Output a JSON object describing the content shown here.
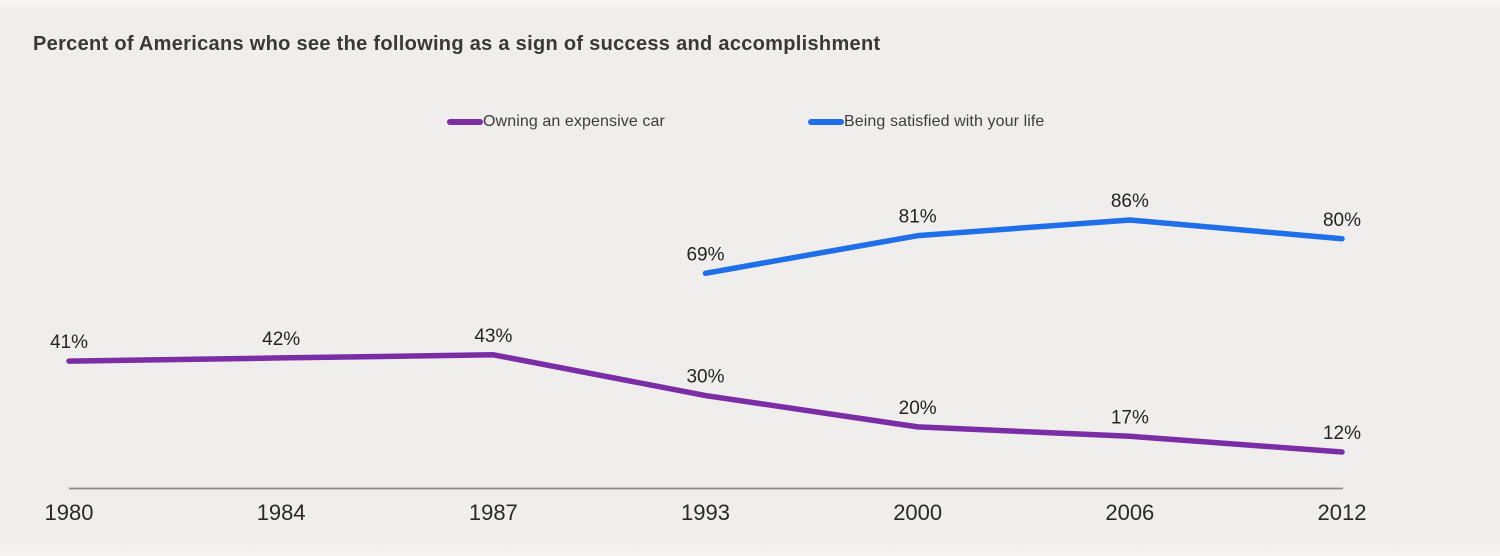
{
  "title": "Percent of Americans who see the following as a sign of success and accomplishment",
  "chart_data": {
    "type": "line",
    "title": "Percent of Americans who see the following as a sign of success and accomplishment",
    "categories": [
      "1980",
      "1984",
      "1987",
      "1993",
      "2000",
      "2006",
      "2012"
    ],
    "series": [
      {
        "name": "Owning an expensive car",
        "color": "#7b2da6",
        "values": [
          41,
          42,
          43,
          30,
          20,
          17,
          12
        ]
      },
      {
        "name": "Being satisfied with your life",
        "color": "#1e6fe8",
        "values": [
          null,
          null,
          null,
          69,
          81,
          86,
          80
        ]
      }
    ],
    "value_suffix": "%",
    "value_labels": "above-points",
    "xlabel": "",
    "ylabel": "",
    "ylim": [
      0,
      100
    ],
    "grid": false,
    "legend_position": "top-center",
    "colors": {
      "background": "#efeeec",
      "axis_line": "#8a8987",
      "text": "#262422"
    }
  }
}
